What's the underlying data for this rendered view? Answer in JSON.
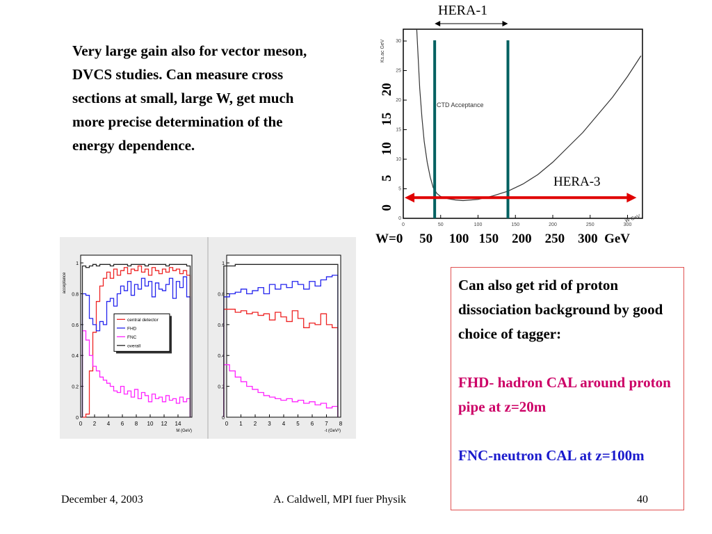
{
  "slide": {
    "intro_text": "Very large gain also for vector meson, DVCS studies.  Can measure cross sections at small, large W, get much more precise determination of the energy dependence.",
    "box_heading": "Can also get rid of proton dissociation background by good choice of tagger:",
    "fhd_text": "FHD- hadron CAL around proton pipe at z=20m",
    "fnc_text": "FNC-neutron CAL at z=100m",
    "footer_date": "December 4, 2003",
    "footer_author": "A. Caldwell, MPI fuer Physik",
    "footer_page": "40",
    "colors": {
      "fhd_text": "#cc0066",
      "fnc_text": "#1a1acc",
      "box_border": "#e05050"
    }
  },
  "chart_data": [
    {
      "type": "line",
      "ylabel_partial": "Ks.ac GeV",
      "xlabel_partial": "W GeV",
      "annotation": "CTD Acceptance",
      "hera1_label": "HERA-1",
      "hera3_label": "HERA-3",
      "outer_x_ticks": "W=0     50     100   150    200    250    300  GeV",
      "outer_y_ticks": [
        "0",
        "5",
        "10",
        "15",
        "20"
      ],
      "inner_x_ticks": [
        "0",
        "50",
        "100",
        "150",
        "200",
        "250",
        "300"
      ],
      "inner_y_ticks": [
        "0",
        "5",
        "10",
        "15",
        "20",
        "25",
        "30"
      ],
      "xlim": [
        0,
        320
      ],
      "ylim": [
        0,
        32
      ],
      "curve": {
        "x": [
          18,
          20,
          22,
          25,
          28,
          32,
          36,
          40,
          45,
          50,
          60,
          70,
          80,
          100,
          120,
          140,
          160,
          180,
          200,
          220,
          240,
          260,
          280,
          300,
          318
        ],
        "y": [
          32,
          27,
          22,
          17,
          13,
          9.5,
          7,
          5.2,
          4.2,
          3.7,
          3.3,
          3.1,
          3.0,
          3.2,
          3.8,
          4.6,
          5.8,
          7.4,
          9.5,
          12,
          14.5,
          17.5,
          20.5,
          24,
          27.5
        ]
      },
      "hera1_range": [
        42,
        140
      ],
      "hera3_range": [
        0,
        312
      ],
      "hera3_y": 3.5,
      "colors": {
        "curve": "#333333",
        "hera1_lines": "#006060",
        "hera3_arrow": "#e00000"
      }
    },
    {
      "type": "line",
      "ylabel": "acceptance",
      "xlabel": "M (GeV)",
      "xlim": [
        0,
        16
      ],
      "ylim": [
        0,
        1.05
      ],
      "x_ticks": [
        "0",
        "2",
        "4",
        "6",
        "8",
        "10",
        "12",
        "14"
      ],
      "y_ticks": [
        "0",
        "0.2",
        "0.4",
        "0.6",
        "0.8",
        "1"
      ],
      "legend": {
        "placement": "center-right",
        "entries": [
          "central detector",
          "FHD",
          "FNC",
          "overall"
        ]
      },
      "x": [
        0.5,
        1.0,
        1.5,
        2.0,
        2.5,
        3.0,
        3.5,
        4.0,
        4.5,
        5.0,
        5.5,
        6.0,
        6.5,
        7.0,
        7.5,
        8.0,
        8.5,
        9.0,
        9.5,
        10.0,
        10.5,
        11.0,
        11.5,
        12.0,
        12.5,
        13.0,
        13.5,
        14.0,
        14.5,
        15.0,
        15.5
      ],
      "series": [
        {
          "name": "central detector",
          "color": "#ee2222",
          "values": [
            0,
            0.02,
            0.3,
            0.55,
            0.75,
            0.85,
            0.9,
            0.94,
            0.9,
            0.96,
            0.92,
            0.95,
            0.97,
            0.93,
            0.96,
            0.95,
            0.98,
            0.94,
            0.96,
            0.92,
            0.97,
            0.95,
            0.93,
            0.96,
            0.94,
            0.97,
            0.95,
            0.96,
            0.93,
            0.95,
            0.92
          ]
        },
        {
          "name": "FHD",
          "color": "#2222ee",
          "values": [
            0.8,
            0.79,
            0.64,
            0.6,
            0.56,
            0.62,
            0.6,
            0.75,
            0.77,
            0.72,
            0.8,
            0.85,
            0.82,
            0.88,
            0.79,
            0.86,
            0.83,
            0.9,
            0.85,
            0.88,
            0.78,
            0.87,
            0.83,
            0.82,
            0.86,
            0.9,
            0.77,
            0.88,
            0.84,
            0.91,
            0.78
          ]
        },
        {
          "name": "FNC",
          "color": "#ff22ff",
          "values": [
            0.56,
            0.5,
            0.4,
            0.33,
            0.3,
            0.26,
            0.24,
            0.22,
            0.2,
            0.17,
            0.16,
            0.2,
            0.15,
            0.17,
            0.13,
            0.18,
            0.12,
            0.16,
            0.14,
            0.1,
            0.15,
            0.12,
            0.13,
            0.1,
            0.14,
            0.11,
            0.12,
            0.09,
            0.13,
            0.1,
            0.12
          ]
        },
        {
          "name": "overall",
          "color": "#222222",
          "values": [
            0.98,
            0.97,
            0.98,
            0.99,
            0.98,
            0.99,
            0.99,
            0.99,
            0.98,
            0.99,
            0.99,
            0.99,
            0.99,
            0.98,
            0.99,
            0.99,
            0.99,
            0.99,
            0.98,
            0.99,
            0.99,
            0.99,
            0.99,
            0.99,
            0.98,
            0.99,
            0.99,
            0.99,
            0.99,
            0.99,
            0.98
          ]
        }
      ]
    },
    {
      "type": "line",
      "xlabel": "-t (GeV²)",
      "xlim": [
        0,
        8
      ],
      "ylim": [
        0,
        1.05
      ],
      "x_ticks": [
        "0",
        "1",
        "2",
        "3",
        "4",
        "5",
        "6",
        "7",
        "8"
      ],
      "y_ticks": [
        "0",
        "0.2",
        "0.4",
        "0.6",
        "0.8",
        "1"
      ],
      "x": [
        0.0,
        0.4,
        0.8,
        1.2,
        1.6,
        2.0,
        2.4,
        2.8,
        3.2,
        3.6,
        4.0,
        4.4,
        4.8,
        5.2,
        5.6,
        6.0,
        6.4,
        6.8,
        7.2,
        7.6
      ],
      "series": [
        {
          "name": "central detector",
          "color": "#ee2222",
          "values": [
            0.7,
            0.7,
            0.68,
            0.69,
            0.67,
            0.68,
            0.66,
            0.67,
            0.63,
            0.68,
            0.65,
            0.62,
            0.69,
            0.64,
            0.58,
            0.61,
            0.6,
            0.67,
            0.6,
            0.58
          ]
        },
        {
          "name": "FHD",
          "color": "#2222ee",
          "values": [
            0.78,
            0.8,
            0.81,
            0.83,
            0.8,
            0.82,
            0.84,
            0.8,
            0.86,
            0.83,
            0.86,
            0.84,
            0.88,
            0.86,
            0.83,
            0.88,
            0.85,
            0.89,
            0.91,
            0.92
          ]
        },
        {
          "name": "FNC",
          "color": "#ff22ff",
          "values": [
            0.34,
            0.3,
            0.26,
            0.23,
            0.2,
            0.18,
            0.16,
            0.14,
            0.13,
            0.12,
            0.11,
            0.12,
            0.1,
            0.11,
            0.09,
            0.1,
            0.08,
            0.09,
            0.06,
            0.07
          ]
        },
        {
          "name": "overall",
          "color": "#222222",
          "values": [
            0.98,
            0.98,
            0.99,
            0.99,
            0.99,
            0.99,
            0.99,
            0.99,
            0.99,
            0.99,
            0.99,
            0.99,
            0.99,
            0.99,
            0.99,
            0.99,
            0.99,
            0.99,
            0.99,
            0.99
          ]
        }
      ]
    }
  ]
}
